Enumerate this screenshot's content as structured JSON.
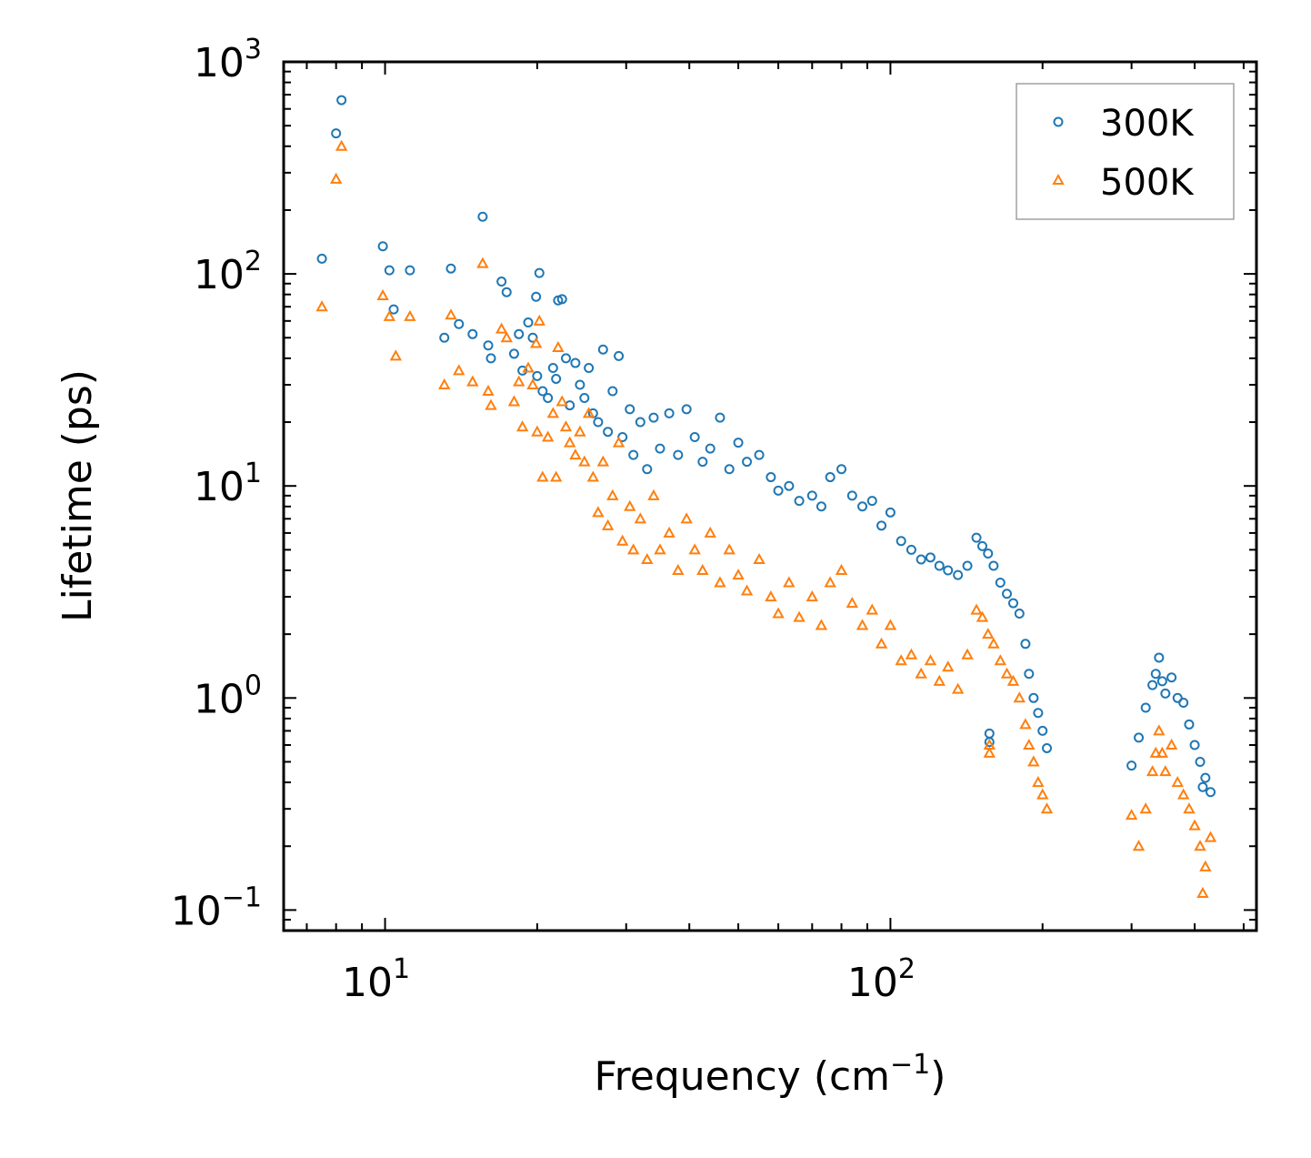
{
  "chart_data": {
    "type": "scatter",
    "title": "",
    "xlabel": "Frequency (cm",
    "xlabel_exponent": "−1",
    "xlabel_suffix": ")",
    "ylabel": "Lifetime (ps)",
    "xscale": "log",
    "yscale": "log",
    "xlim": [
      6.3,
      530
    ],
    "ylim": [
      0.08,
      1000
    ],
    "x_ticks": [
      {
        "value": 10,
        "base": "10",
        "exp": "1"
      },
      {
        "value": 100,
        "base": "10",
        "exp": "2"
      }
    ],
    "y_ticks": [
      {
        "value": 0.1,
        "base": "10",
        "exp": "−1"
      },
      {
        "value": 1,
        "base": "10",
        "exp": "0"
      },
      {
        "value": 10,
        "base": "10",
        "exp": "1"
      },
      {
        "value": 100,
        "base": "10",
        "exp": "2"
      },
      {
        "value": 1000,
        "base": "10",
        "exp": "3"
      }
    ],
    "legend_position": "top-right",
    "series": [
      {
        "name": "300K",
        "marker": "circle",
        "color": "#1f77b4",
        "points": [
          [
            7.5,
            118
          ],
          [
            8.0,
            460
          ],
          [
            8.2,
            660
          ],
          [
            9.9,
            135
          ],
          [
            10.2,
            104
          ],
          [
            10.4,
            68
          ],
          [
            11.2,
            104
          ],
          [
            13.1,
            50
          ],
          [
            13.5,
            106
          ],
          [
            14.0,
            58
          ],
          [
            14.9,
            52
          ],
          [
            15.6,
            186
          ],
          [
            16.0,
            46
          ],
          [
            16.2,
            40
          ],
          [
            17.0,
            92
          ],
          [
            17.4,
            82
          ],
          [
            18.0,
            42
          ],
          [
            18.4,
            52
          ],
          [
            18.7,
            35
          ],
          [
            19.2,
            59
          ],
          [
            19.6,
            50
          ],
          [
            19.9,
            78
          ],
          [
            20.2,
            101
          ],
          [
            20.0,
            33
          ],
          [
            20.5,
            28
          ],
          [
            21.0,
            26
          ],
          [
            21.5,
            36
          ],
          [
            21.8,
            32
          ],
          [
            22.0,
            75
          ],
          [
            22.4,
            76
          ],
          [
            22.8,
            40
          ],
          [
            23.2,
            24
          ],
          [
            23.8,
            38
          ],
          [
            24.3,
            30
          ],
          [
            24.8,
            26
          ],
          [
            25.3,
            36
          ],
          [
            25.8,
            22
          ],
          [
            26.4,
            20
          ],
          [
            27.0,
            44
          ],
          [
            27.6,
            18
          ],
          [
            28.2,
            28
          ],
          [
            29.0,
            41
          ],
          [
            29.5,
            17
          ],
          [
            30.5,
            23
          ],
          [
            31.0,
            14
          ],
          [
            32.0,
            20
          ],
          [
            33.0,
            12
          ],
          [
            34.0,
            21
          ],
          [
            35.0,
            15
          ],
          [
            36.5,
            22
          ],
          [
            38.0,
            14
          ],
          [
            39.5,
            23
          ],
          [
            41.0,
            17
          ],
          [
            42.5,
            13
          ],
          [
            44.0,
            15
          ],
          [
            46.0,
            21
          ],
          [
            48.0,
            12
          ],
          [
            50.0,
            16
          ],
          [
            52.0,
            13
          ],
          [
            55.0,
            14
          ],
          [
            58.0,
            11
          ],
          [
            60.0,
            9.5
          ],
          [
            63.0,
            10
          ],
          [
            66.0,
            8.5
          ],
          [
            70.0,
            9
          ],
          [
            73.0,
            8
          ],
          [
            76.0,
            11
          ],
          [
            80.0,
            12
          ],
          [
            84.0,
            9
          ],
          [
            88.0,
            8
          ],
          [
            92.0,
            8.5
          ],
          [
            96.0,
            6.5
          ],
          [
            100.0,
            7.5
          ],
          [
            105.0,
            5.5
          ],
          [
            110.0,
            5
          ],
          [
            115.0,
            4.5
          ],
          [
            120.0,
            4.6
          ],
          [
            125.0,
            4.2
          ],
          [
            130.0,
            4
          ],
          [
            136.0,
            3.8
          ],
          [
            142.0,
            4.2
          ],
          [
            148.0,
            5.7
          ],
          [
            152.0,
            5.2
          ],
          [
            156.0,
            4.8
          ],
          [
            160.0,
            4.2
          ],
          [
            165.0,
            3.5
          ],
          [
            170.0,
            3.1
          ],
          [
            175.0,
            2.8
          ],
          [
            180.0,
            2.5
          ],
          [
            185.0,
            1.8
          ],
          [
            188.0,
            1.3
          ],
          [
            192.0,
            1.0
          ],
          [
            196.0,
            0.85
          ],
          [
            200.0,
            0.7
          ],
          [
            204.0,
            0.58
          ],
          [
            157.0,
            0.68
          ],
          [
            157.0,
            0.62
          ],
          [
            300.0,
            0.48
          ],
          [
            310.0,
            0.65
          ],
          [
            320.0,
            0.9
          ],
          [
            330.0,
            1.15
          ],
          [
            335.0,
            1.3
          ],
          [
            340.0,
            1.55
          ],
          [
            345.0,
            1.2
          ],
          [
            350.0,
            1.05
          ],
          [
            360.0,
            1.25
          ],
          [
            370.0,
            1.0
          ],
          [
            380.0,
            0.95
          ],
          [
            390.0,
            0.75
          ],
          [
            400.0,
            0.6
          ],
          [
            410.0,
            0.5
          ],
          [
            420.0,
            0.42
          ],
          [
            430.0,
            0.36
          ],
          [
            415.0,
            0.38
          ]
        ]
      },
      {
        "name": "500K",
        "marker": "triangle",
        "color": "#ff7f0e",
        "points": [
          [
            7.5,
            70
          ],
          [
            8.0,
            280
          ],
          [
            8.2,
            400
          ],
          [
            9.9,
            79
          ],
          [
            10.2,
            63
          ],
          [
            10.5,
            41
          ],
          [
            11.2,
            63
          ],
          [
            13.1,
            30
          ],
          [
            13.5,
            64
          ],
          [
            14.0,
            35
          ],
          [
            14.9,
            31
          ],
          [
            15.6,
            112
          ],
          [
            16.0,
            28
          ],
          [
            16.2,
            24
          ],
          [
            17.0,
            55
          ],
          [
            17.4,
            50
          ],
          [
            18.0,
            25
          ],
          [
            18.4,
            31
          ],
          [
            18.7,
            19
          ],
          [
            19.2,
            36
          ],
          [
            19.6,
            30
          ],
          [
            19.9,
            47
          ],
          [
            20.2,
            60
          ],
          [
            20.0,
            18
          ],
          [
            20.5,
            11
          ],
          [
            21.0,
            17
          ],
          [
            21.5,
            22
          ],
          [
            21.8,
            11
          ],
          [
            22.0,
            45
          ],
          [
            22.4,
            25
          ],
          [
            22.8,
            19
          ],
          [
            23.2,
            16
          ],
          [
            23.8,
            14
          ],
          [
            24.3,
            18
          ],
          [
            24.8,
            13
          ],
          [
            25.3,
            22
          ],
          [
            25.8,
            11
          ],
          [
            26.4,
            7.5
          ],
          [
            27.0,
            13
          ],
          [
            27.6,
            6.5
          ],
          [
            28.2,
            9
          ],
          [
            29.0,
            16
          ],
          [
            29.5,
            5.5
          ],
          [
            30.5,
            8
          ],
          [
            31.0,
            5
          ],
          [
            32.0,
            7
          ],
          [
            33.0,
            4.5
          ],
          [
            34.0,
            9
          ],
          [
            35.0,
            5
          ],
          [
            36.5,
            6
          ],
          [
            38.0,
            4
          ],
          [
            39.5,
            7
          ],
          [
            41.0,
            5
          ],
          [
            42.5,
            4
          ],
          [
            44.0,
            6
          ],
          [
            46.0,
            3.5
          ],
          [
            48.0,
            5
          ],
          [
            50.0,
            3.8
          ],
          [
            52.0,
            3.2
          ],
          [
            55.0,
            4.5
          ],
          [
            58.0,
            3
          ],
          [
            60.0,
            2.5
          ],
          [
            63.0,
            3.5
          ],
          [
            66.0,
            2.4
          ],
          [
            70.0,
            3
          ],
          [
            73.0,
            2.2
          ],
          [
            76.0,
            3.5
          ],
          [
            80.0,
            4
          ],
          [
            84.0,
            2.8
          ],
          [
            88.0,
            2.2
          ],
          [
            92.0,
            2.6
          ],
          [
            96.0,
            1.8
          ],
          [
            100.0,
            2.2
          ],
          [
            105.0,
            1.5
          ],
          [
            110.0,
            1.6
          ],
          [
            115.0,
            1.3
          ],
          [
            120.0,
            1.5
          ],
          [
            125.0,
            1.2
          ],
          [
            130.0,
            1.4
          ],
          [
            136.0,
            1.1
          ],
          [
            142.0,
            1.6
          ],
          [
            148.0,
            2.6
          ],
          [
            152.0,
            2.4
          ],
          [
            156.0,
            2
          ],
          [
            160.0,
            1.8
          ],
          [
            165.0,
            1.5
          ],
          [
            170.0,
            1.3
          ],
          [
            175.0,
            1.2
          ],
          [
            180.0,
            1.0
          ],
          [
            185.0,
            0.75
          ],
          [
            188.0,
            0.6
          ],
          [
            192.0,
            0.5
          ],
          [
            196.0,
            0.4
          ],
          [
            200.0,
            0.35
          ],
          [
            204.0,
            0.3
          ],
          [
            157.0,
            0.6
          ],
          [
            157.0,
            0.55
          ],
          [
            300.0,
            0.28
          ],
          [
            310.0,
            0.2
          ],
          [
            320.0,
            0.3
          ],
          [
            330.0,
            0.45
          ],
          [
            335.0,
            0.55
          ],
          [
            340.0,
            0.7
          ],
          [
            345.0,
            0.55
          ],
          [
            350.0,
            0.45
          ],
          [
            360.0,
            0.6
          ],
          [
            370.0,
            0.4
          ],
          [
            380.0,
            0.35
          ],
          [
            390.0,
            0.3
          ],
          [
            400.0,
            0.25
          ],
          [
            410.0,
            0.2
          ],
          [
            415.0,
            0.12
          ],
          [
            420.0,
            0.16
          ],
          [
            430.0,
            0.22
          ]
        ]
      }
    ]
  }
}
